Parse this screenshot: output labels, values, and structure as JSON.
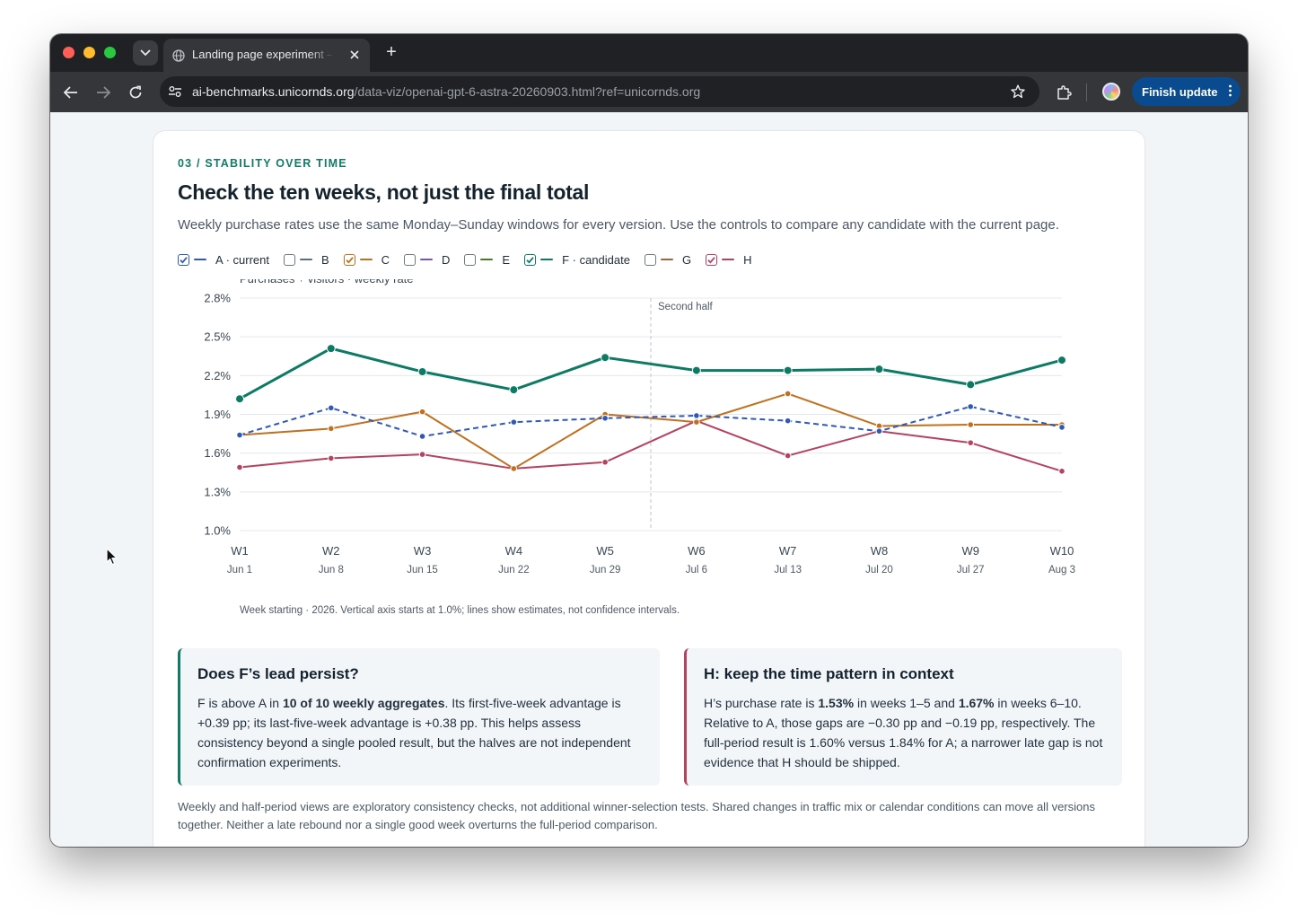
{
  "browser": {
    "tab_title": "Landing page experiment — r",
    "url_host": "ai-benchmarks.unicornds.org",
    "url_path": "/data-viz/openai-gpt-6-astra-20260903.html?ref=unicornds.org",
    "finish_update_label": "Finish update"
  },
  "section": {
    "kicker": "03 / STABILITY OVER TIME",
    "title": "Check the ten weeks, not just the final total",
    "subtitle": "Weekly purchase rates use the same Monday–Sunday windows for every version. Use the controls to compare any candidate with the current page."
  },
  "legend": [
    {
      "label": "A · current",
      "checked": true,
      "color": "#2f59b8"
    },
    {
      "label": "B",
      "checked": false,
      "color": "#5f6d80"
    },
    {
      "label": "C",
      "checked": true,
      "color": "#c0701e"
    },
    {
      "label": "D",
      "checked": false,
      "color": "#7a55b8"
    },
    {
      "label": "E",
      "checked": false,
      "color": "#4d7a2a"
    },
    {
      "label": "F · candidate",
      "checked": true,
      "color": "#0d7a64"
    },
    {
      "label": "G",
      "checked": false,
      "color": "#a0663a"
    },
    {
      "label": "H",
      "checked": true,
      "color": "#b5425e"
    }
  ],
  "chart_data": {
    "type": "line",
    "ylabel": "Purchases ÷ visitors · weekly rate",
    "ylim": [
      1.0,
      2.8
    ],
    "yticks": [
      "2.8%",
      "2.5%",
      "2.2%",
      "1.9%",
      "1.6%",
      "1.3%",
      "1.0%"
    ],
    "ytick_values": [
      2.8,
      2.5,
      2.2,
      1.9,
      1.6,
      1.3,
      1.0
    ],
    "categories": [
      "W1",
      "W2",
      "W3",
      "W4",
      "W5",
      "W6",
      "W7",
      "W8",
      "W9",
      "W10"
    ],
    "dates": [
      "Jun 1",
      "Jun 8",
      "Jun 15",
      "Jun 22",
      "Jun 29",
      "Jul 6",
      "Jul 13",
      "Jul 20",
      "Jul 27",
      "Aug 3"
    ],
    "annotation": "Second half",
    "grid": true,
    "series": [
      {
        "name": "A · current",
        "color": "#2f59b8",
        "dashed": true,
        "values": [
          1.74,
          1.95,
          1.73,
          1.84,
          1.87,
          1.89,
          1.85,
          1.77,
          1.96,
          1.8
        ]
      },
      {
        "name": "C",
        "color": "#c0701e",
        "dashed": false,
        "values": [
          1.74,
          1.79,
          1.92,
          1.48,
          1.9,
          1.84,
          2.06,
          1.81,
          1.82,
          1.82
        ]
      },
      {
        "name": "F · candidate",
        "color": "#0d7a64",
        "dashed": false,
        "values": [
          2.02,
          2.41,
          2.23,
          2.09,
          2.34,
          2.24,
          2.24,
          2.25,
          2.13,
          2.32
        ]
      },
      {
        "name": "H",
        "color": "#b5425e",
        "dashed": false,
        "values": [
          1.49,
          1.56,
          1.59,
          1.48,
          1.53,
          1.85,
          1.58,
          1.77,
          1.68,
          1.46
        ]
      }
    ]
  },
  "chart_note": "Week starting · 2026. Vertical axis starts at 1.0%; lines show estimates, not confidence intervals.",
  "box_f": {
    "title": "Does F’s lead persist?",
    "t1": "F is above A in ",
    "b1": "10 of 10 weekly aggregates",
    "t2": ". Its first-five-week advantage is +0.39 pp; its last-five-week advantage is +0.38 pp. This helps assess consistency beyond a single pooled result, but the halves are not independent confirmation experiments.",
    "accent": "#137a6a"
  },
  "box_h": {
    "title": "H: keep the time pattern in context",
    "t1": "H’s purchase rate is ",
    "b1": "1.53%",
    "t2": " in weeks 1–5 and ",
    "b2": "1.67%",
    "t3": " in weeks 6–10. Relative to A, those gaps are −0.30 pp and −0.19 pp, respectively. The full-period result is 1.60% versus 1.84% for A; a narrower late gap is not evidence that H should be shipped.",
    "accent": "#b5425e"
  },
  "footer": "Weekly and half-period views are exploratory consistency checks, not additional winner-selection tests. Shared changes in traffic mix or calendar conditions can move all versions together. Neither a late rebound nor a single good week overturns the full-period comparison."
}
